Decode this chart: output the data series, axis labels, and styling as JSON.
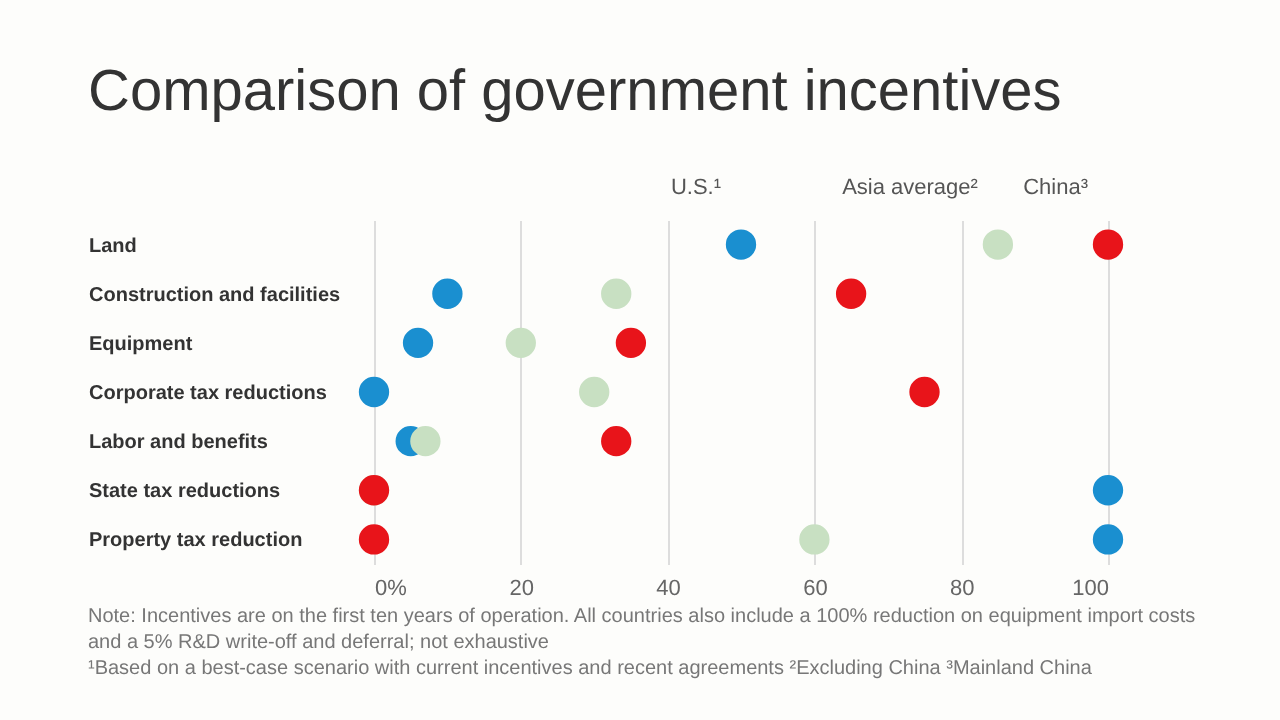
{
  "chart_data": {
    "type": "scatter",
    "title": "Comparison of government incentives",
    "categories": [
      "Land",
      "Construction and facilities",
      "Equipment",
      "Corporate tax reductions",
      "Labor and benefits",
      "State tax reductions",
      "Property tax reduction"
    ],
    "series": [
      {
        "name": "U.S.¹",
        "color": "#1a8fd0",
        "values": [
          50,
          10,
          6,
          0,
          5,
          100,
          100
        ]
      },
      {
        "name": "Asia average²",
        "color": "#c8e0c2",
        "values": [
          85,
          33,
          20,
          30,
          7,
          0,
          60
        ]
      },
      {
        "name": "China³",
        "color": "#e8141a",
        "values": [
          100,
          65,
          35,
          75,
          33,
          0,
          0
        ]
      }
    ],
    "orientation": "horizontal",
    "xlim": [
      0,
      100
    ],
    "xticks": [
      {
        "value": 0,
        "label": "0%"
      },
      20,
      40,
      60,
      80,
      100
    ],
    "grid": "x",
    "marker": "circle",
    "annotations": [
      "Note: Incentives are on the first ten years of operation. All countries also include a 100% reduction on equipment import costs",
      "and a 5% R&D write-off and deferral; not exhaustive",
      "¹Based on a best-case scenario with current incentives and recent agreements ²Excluding China ³Mainland China"
    ]
  }
}
